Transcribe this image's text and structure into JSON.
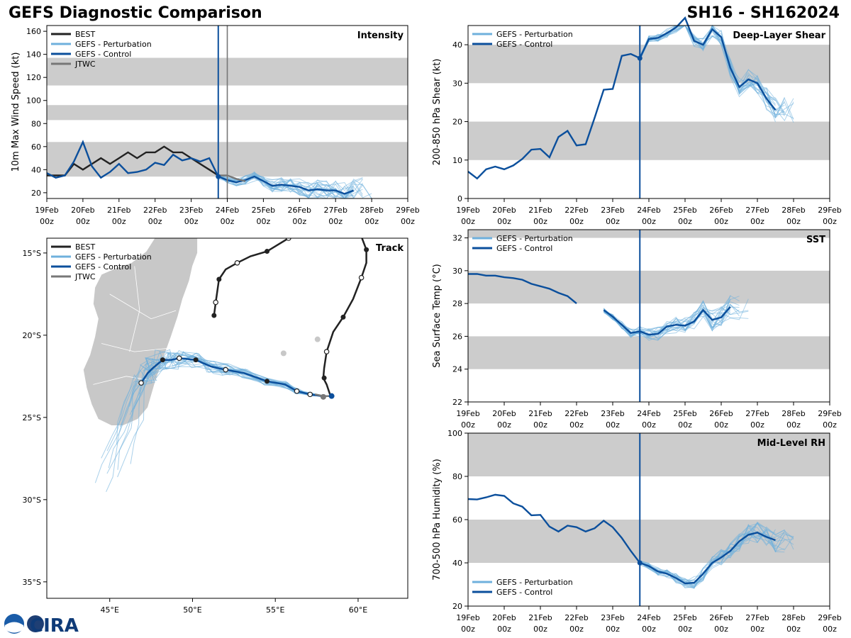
{
  "header": {
    "title": "GEFS Diagnostic Comparison",
    "storm_id": "SH16 - SH162024"
  },
  "logo": {
    "noaa": "NOAA",
    "cira": "CIRA"
  },
  "colors": {
    "best": "#222222",
    "perturbation": "#6fb0dc",
    "control": "#0b4f9c",
    "jtwc": "#777777",
    "band": "#cccccc",
    "land": "#c8c8c8",
    "init_line": "#0b4f9c"
  },
  "time_axis": {
    "ticks": [
      "19Feb",
      "20Feb",
      "21Feb",
      "22Feb",
      "23Feb",
      "24Feb",
      "25Feb",
      "26Feb",
      "27Feb",
      "28Feb",
      "29Feb"
    ],
    "sub": "00z"
  },
  "legend": {
    "best": "BEST",
    "perturbation": "GEFS - Perturbation",
    "control": "GEFS - Control",
    "jtwc": "JTWC"
  },
  "chart_data": [
    {
      "id": "intensity",
      "type": "line",
      "title": "Intensity",
      "ylabel": "10m Max Wind Speed (kt)",
      "ylim": [
        15,
        165
      ],
      "yticks": [
        20,
        40,
        60,
        80,
        100,
        120,
        140,
        160
      ],
      "bands": [
        [
          34,
          64
        ],
        [
          83,
          96
        ],
        [
          113,
          137
        ]
      ],
      "init_day": 4.75,
      "jtwc_day": 5.0,
      "series": [
        {
          "name": "BEST",
          "color_key": "best",
          "x": [
            0,
            0.25,
            0.5,
            0.75,
            1,
            1.25,
            1.5,
            1.75,
            2,
            2.25,
            2.5,
            2.75,
            3,
            3.25,
            3.5,
            3.75,
            4,
            4.25,
            4.5,
            4.75
          ],
          "y": [
            35,
            35,
            35,
            45,
            40,
            45,
            50,
            45,
            50,
            55,
            50,
            55,
            55,
            60,
            55,
            55,
            50,
            45,
            40,
            35
          ]
        },
        {
          "name": "GEFS - Control",
          "color_key": "control",
          "x": [
            0,
            0.25,
            0.5,
            0.75,
            1,
            1.25,
            1.5,
            1.75,
            2,
            2.25,
            2.5,
            2.75,
            3,
            3.25,
            3.5,
            3.75,
            4,
            4.25,
            4.5,
            4.75
          ],
          "y": [
            37,
            33,
            35,
            47,
            64,
            43,
            33,
            38,
            45,
            37,
            38,
            40,
            46,
            44,
            53,
            48,
            50,
            47,
            50,
            34
          ]
        },
        {
          "name": "GEFS - Control (forecast)",
          "color_key": "control",
          "x": [
            4.75,
            5,
            5.25,
            5.5,
            5.75,
            6,
            6.25,
            6.5,
            6.75,
            7,
            7.25,
            7.5,
            7.75,
            8,
            8.25,
            8.5
          ],
          "y": [
            34,
            31,
            29,
            31,
            34,
            30,
            26,
            27,
            26,
            25,
            22,
            23,
            22,
            22,
            19,
            22
          ]
        },
        {
          "name": "JTWC",
          "color_key": "jtwc",
          "x": [
            4.75,
            5,
            5.25,
            5.5
          ],
          "y": [
            35,
            35,
            32,
            30
          ]
        }
      ]
    },
    {
      "id": "shear",
      "type": "line",
      "title": "Deep-Layer Shear",
      "ylabel": "200-850 hPa Shear (kt)",
      "ylim": [
        0,
        45
      ],
      "yticks": [
        0,
        10,
        20,
        30,
        40
      ],
      "bands": [
        [
          10,
          20
        ],
        [
          30,
          40
        ]
      ],
      "init_day": 4.75,
      "series": [
        {
          "name": "GEFS - Control",
          "color_key": "control",
          "x": [
            0,
            0.25,
            0.5,
            0.75,
            1,
            1.25,
            1.5,
            1.75,
            2,
            2.25,
            2.5,
            2.75,
            3,
            3.25,
            3.5,
            3.75,
            4,
            4.25,
            4.5,
            4.75
          ],
          "y": [
            7,
            5.2,
            7.6,
            8.3,
            7.6,
            8.6,
            10.3,
            12.7,
            12.9,
            10.7,
            16,
            17.6,
            13.8,
            14.1,
            21,
            28.3,
            28.5,
            37.1,
            37.6,
            36.5
          ]
        },
        {
          "name": "GEFS - Control (forecast)",
          "color_key": "control",
          "x": [
            4.75,
            5,
            5.25,
            5.5,
            5.75,
            6,
            6.25,
            6.5,
            6.75,
            7,
            7.25,
            7.5,
            7.75,
            8,
            8.25,
            8.5
          ],
          "y": [
            36.5,
            41.5,
            41.8,
            43,
            44.5,
            47,
            41,
            40,
            44,
            42,
            34,
            29,
            31,
            30,
            26,
            23
          ]
        }
      ]
    },
    {
      "id": "sst",
      "type": "line",
      "title": "SST",
      "ylabel": "Sea Surface Temp (°C)",
      "ylim": [
        22,
        32.5
      ],
      "yticks": [
        22,
        24,
        26,
        28,
        30,
        32
      ],
      "bands": [
        [
          24,
          26
        ],
        [
          28,
          30
        ],
        [
          32,
          32.5
        ]
      ],
      "init_day": 4.75,
      "series": [
        {
          "name": "GEFS - Control",
          "color_key": "control",
          "x": [
            0,
            0.25,
            0.5,
            0.75,
            1,
            1.25,
            1.5,
            1.75,
            2,
            2.25,
            2.5,
            2.75,
            3
          ],
          "y": [
            29.8,
            29.8,
            29.7,
            29.7,
            29.6,
            29.55,
            29.45,
            29.2,
            29.05,
            28.9,
            28.65,
            28.45,
            28.0
          ]
        },
        {
          "name": "GEFS - Control (late)",
          "color_key": "control",
          "x": [
            3.75,
            4,
            4.25,
            4.5,
            4.75,
            5,
            5.25,
            5.5,
            5.75,
            6,
            6.25,
            6.5,
            6.75,
            7,
            7.25
          ],
          "y": [
            27.6,
            27.2,
            26.7,
            26.2,
            26.3,
            26.1,
            26.15,
            26.6,
            26.7,
            26.65,
            26.9,
            27.6,
            27.0,
            27.15,
            27.8
          ]
        }
      ]
    },
    {
      "id": "rh",
      "type": "line",
      "title": "Mid-Level RH",
      "ylabel": "700-500 hPa Humidity (%)",
      "ylim": [
        20,
        100
      ],
      "yticks": [
        20,
        40,
        60,
        80,
        100
      ],
      "bands": [
        [
          40,
          60
        ],
        [
          80,
          100
        ]
      ],
      "init_day": 4.75,
      "series": [
        {
          "name": "GEFS - Control",
          "color_key": "control",
          "x": [
            0,
            0.25,
            0.5,
            0.75,
            1,
            1.25,
            1.5,
            1.75,
            2,
            2.25,
            2.5,
            2.75,
            3,
            3.25,
            3.5,
            3.75,
            4,
            4.25,
            4.5,
            4.75
          ],
          "y": [
            69.5,
            69.3,
            70.3,
            71.5,
            71,
            67.5,
            66,
            62,
            62.2,
            56.8,
            54.5,
            57.2,
            56.5,
            54.5,
            56,
            59.5,
            56.5,
            51.5,
            45.5,
            40
          ]
        },
        {
          "name": "GEFS - Control (forecast)",
          "color_key": "control",
          "x": [
            4.75,
            5,
            5.25,
            5.5,
            5.75,
            6,
            6.25,
            6.5,
            6.75,
            7,
            7.25,
            7.5,
            7.75,
            8,
            8.25,
            8.5
          ],
          "y": [
            40,
            38.5,
            36,
            35,
            33,
            30.5,
            30.8,
            35,
            40,
            42.5,
            45.5,
            50,
            53,
            54,
            52,
            50.5
          ]
        }
      ]
    },
    {
      "id": "track",
      "type": "scatter",
      "title": "Track",
      "xticks": [
        "45°E",
        "50°E",
        "55°E",
        "60°E"
      ],
      "xtick_values": [
        45,
        50,
        55,
        60
      ],
      "yticks": [
        "15°S",
        "20°S",
        "25°S",
        "30°S",
        "35°S"
      ],
      "ytick_values": [
        -15,
        -20,
        -25,
        -30,
        -35
      ],
      "xlim": [
        41.2,
        63
      ],
      "ylim": [
        -36,
        -14.1
      ],
      "best_track": [
        [
          51.3,
          -18.8
        ],
        [
          51.4,
          -18.0
        ],
        [
          51.6,
          -16.6
        ],
        [
          52.0,
          -16.0
        ],
        [
          52.7,
          -15.6
        ],
        [
          53.5,
          -15.2
        ],
        [
          54.5,
          -14.9
        ],
        [
          55.8,
          -14.1
        ]
      ],
      "best_track_2": [
        [
          60.2,
          -14
        ],
        [
          60.5,
          -14.8
        ],
        [
          60.5,
          -15.6
        ],
        [
          60.2,
          -16.5
        ],
        [
          59.7,
          -17.8
        ],
        [
          59.1,
          -18.9
        ],
        [
          58.5,
          -19.8
        ],
        [
          58.1,
          -21.0
        ],
        [
          57.95,
          -22.0
        ],
        [
          57.9,
          -22.6
        ],
        [
          58.1,
          -23.0
        ],
        [
          58.3,
          -23.6
        ]
      ],
      "control_track": [
        [
          46.9,
          -22.9
        ],
        [
          47.3,
          -22.3
        ],
        [
          47.6,
          -22.0
        ],
        [
          48.2,
          -21.5
        ],
        [
          48.7,
          -21.5
        ],
        [
          49.2,
          -21.4
        ],
        [
          50.2,
          -21.5
        ],
        [
          51.1,
          -21.9
        ],
        [
          52.0,
          -22.1
        ],
        [
          53.1,
          -22.3
        ],
        [
          54.5,
          -22.8
        ],
        [
          55.6,
          -23.0
        ],
        [
          56.3,
          -23.4
        ],
        [
          57.1,
          -23.6
        ],
        [
          57.8,
          -23.7
        ],
        [
          58.4,
          -23.7
        ]
      ],
      "jtwc_track": [
        [
          58.3,
          -23.7
        ],
        [
          57.9,
          -23.7
        ],
        [
          57.4,
          -23.6
        ]
      ],
      "open_points": [
        [
          55.8,
          -14.1
        ],
        [
          52.7,
          -15.6
        ],
        [
          51.4,
          -18.0
        ],
        [
          60.2,
          -16.5
        ],
        [
          58.1,
          -21.0
        ],
        [
          46.9,
          -22.9
        ],
        [
          49.2,
          -21.4
        ],
        [
          52.0,
          -22.1
        ],
        [
          56.3,
          -23.4
        ],
        [
          57.1,
          -23.6
        ]
      ],
      "filled_points": [
        [
          54.5,
          -14.9
        ],
        [
          51.6,
          -16.6
        ],
        [
          51.3,
          -18.8
        ],
        [
          60.5,
          -14.8
        ],
        [
          59.1,
          -18.9
        ],
        [
          57.95,
          -22.6
        ],
        [
          48.2,
          -21.5
        ],
        [
          50.2,
          -21.5
        ],
        [
          54.5,
          -22.8
        ]
      ]
    }
  ]
}
